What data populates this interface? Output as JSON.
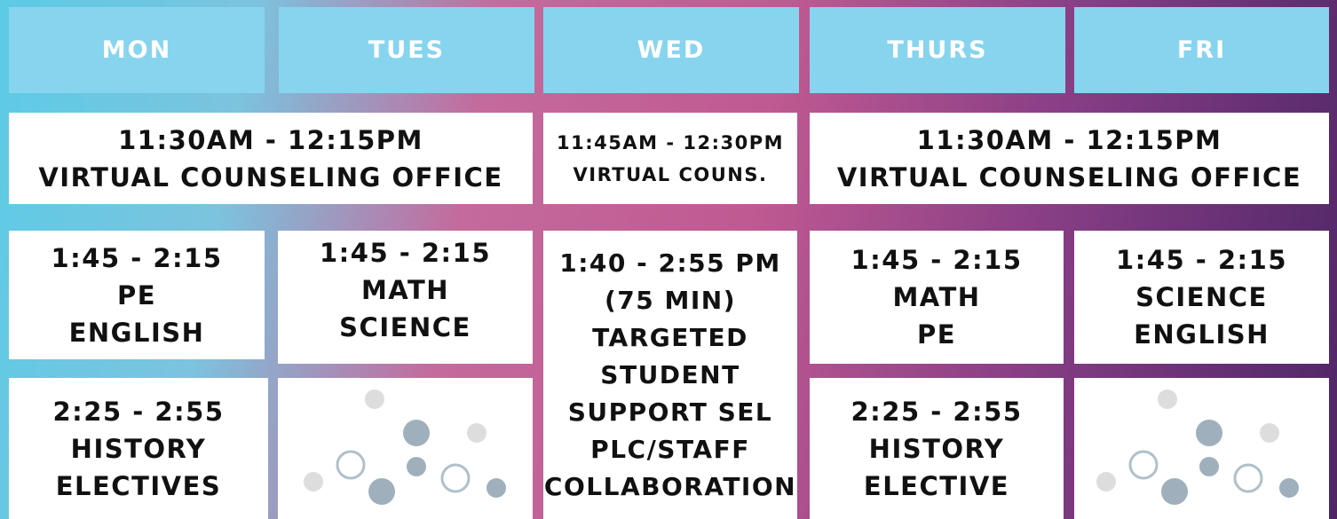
{
  "header": {
    "days": [
      "MON",
      "TUES",
      "WED",
      "THURS",
      "FRI"
    ]
  },
  "counseling": [
    {
      "lines": [
        "11:30AM - 12:15PM",
        "VIRTUAL COUNSELING OFFICE"
      ]
    },
    {
      "lines": [
        "11:45AM - 12:30PM",
        "VIRTUAL COUNS."
      ]
    },
    {
      "lines": [
        "11:30AM - 12:15PM",
        "VIRTUAL COUNSELING OFFICE"
      ]
    }
  ],
  "sessions": [
    {
      "lines": [
        "1:45 - 2:15",
        "PE",
        "ENGLISH"
      ]
    },
    {
      "lines": [
        "1:45 - 2:15",
        "MATH",
        "SCIENCE"
      ]
    },
    {
      "lines": [
        "1:40 - 2:55 PM",
        "(75 MIN)",
        "TARGETED",
        "STUDENT",
        "SUPPORT SEL",
        "PLC/STAFF",
        "COLLABORATION"
      ]
    },
    {
      "lines": [
        "1:45 - 2:15",
        "MATH",
        "PE"
      ]
    },
    {
      "lines": [
        "1:45 - 2:15",
        "SCIENCE",
        "ENGLISH"
      ]
    },
    {
      "lines": [
        "2:25 - 2:55",
        "HISTORY",
        "ELECTIVES"
      ]
    },
    {
      "lines": [
        "2:25 - 2:55",
        "HISTORY",
        "ELECTIVE"
      ]
    }
  ]
}
